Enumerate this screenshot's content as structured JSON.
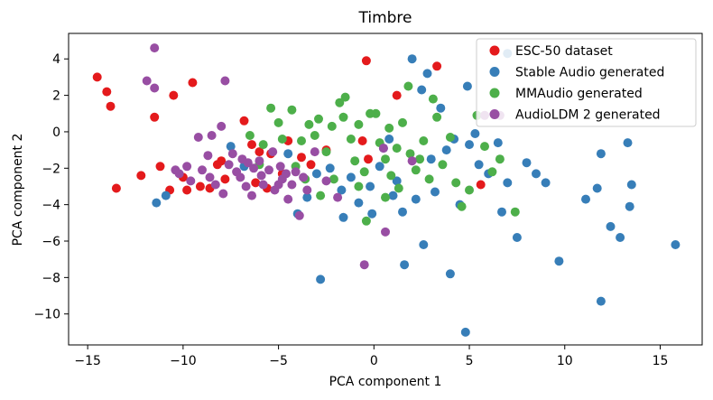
{
  "chart_data": {
    "type": "scatter",
    "title": "Timbre",
    "xlabel": "PCA component 1",
    "ylabel": "PCA component 2",
    "xlim": [
      -16.0,
      17.2
    ],
    "ylim": [
      -11.7,
      5.4
    ],
    "xticks": [
      -15,
      -10,
      -5,
      0,
      5,
      10,
      15
    ],
    "yticks": [
      -10,
      -8,
      -6,
      -4,
      -2,
      0,
      2,
      4
    ],
    "xtick_labels": [
      "−15",
      "−10",
      "−5",
      "0",
      "5",
      "10",
      "15"
    ],
    "ytick_labels": [
      "−10",
      "−8",
      "−6",
      "−4",
      "−2",
      "0",
      "2",
      "4"
    ],
    "legend_position": "top-right",
    "series": [
      {
        "name": "ESC-50 dataset",
        "color": "#e41a1c",
        "points": [
          [
            -14.5,
            3.0
          ],
          [
            -14.0,
            2.2
          ],
          [
            -13.8,
            1.4
          ],
          [
            -10.5,
            2.0
          ],
          [
            -9.5,
            2.7
          ],
          [
            -11.5,
            0.8
          ],
          [
            -12.2,
            -2.4
          ],
          [
            -11.2,
            -1.9
          ],
          [
            -13.5,
            -3.1
          ],
          [
            -10.7,
            -3.2
          ],
          [
            -10.0,
            -2.5
          ],
          [
            -9.8,
            -3.2
          ],
          [
            -9.1,
            -3.0
          ],
          [
            -8.6,
            -3.1
          ],
          [
            -8.0,
            -1.6
          ],
          [
            -7.8,
            -2.6
          ],
          [
            -8.2,
            -1.8
          ],
          [
            -6.8,
            0.6
          ],
          [
            -6.4,
            -0.7
          ],
          [
            -6.0,
            -1.1
          ],
          [
            -5.4,
            -1.2
          ],
          [
            -6.2,
            -2.8
          ],
          [
            -5.6,
            -3.1
          ],
          [
            -4.8,
            -2.3
          ],
          [
            -3.3,
            -1.8
          ],
          [
            -2.5,
            -1.0
          ],
          [
            -0.4,
            3.9
          ],
          [
            1.2,
            2.0
          ],
          [
            3.3,
            3.6
          ],
          [
            -0.6,
            -0.5
          ],
          [
            -0.3,
            -1.5
          ],
          [
            5.6,
            -2.9
          ],
          [
            -4.5,
            -0.5
          ],
          [
            -3.8,
            -1.4
          ]
        ]
      },
      {
        "name": "Stable Audio generated",
        "color": "#377eb8",
        "points": [
          [
            -11.4,
            -3.9
          ],
          [
            -10.9,
            -3.5
          ],
          [
            -7.5,
            -0.8
          ],
          [
            -6.8,
            -1.9
          ],
          [
            -4.5,
            -1.2
          ],
          [
            -4.0,
            -4.5
          ],
          [
            -3.5,
            -3.6
          ],
          [
            -2.8,
            -8.1
          ],
          [
            -2.3,
            -2.0
          ],
          [
            -1.7,
            -3.2
          ],
          [
            -1.6,
            -4.7
          ],
          [
            -0.8,
            -3.9
          ],
          [
            -0.2,
            -3.0
          ],
          [
            0.3,
            -1.9
          ],
          [
            0.8,
            -0.4
          ],
          [
            1.2,
            -2.7
          ],
          [
            1.5,
            -4.4
          ],
          [
            1.6,
            -7.3
          ],
          [
            2.0,
            4.0
          ],
          [
            2.5,
            2.3
          ],
          [
            3.0,
            -1.5
          ],
          [
            3.2,
            -3.3
          ],
          [
            3.5,
            1.3
          ],
          [
            4.0,
            -7.8
          ],
          [
            4.5,
            -4.0
          ],
          [
            5.0,
            -0.7
          ],
          [
            5.3,
            -0.1
          ],
          [
            5.5,
            -1.8
          ],
          [
            6.0,
            -2.3
          ],
          [
            6.5,
            -0.6
          ],
          [
            7.0,
            -2.8
          ],
          [
            7.5,
            -5.8
          ],
          [
            8.0,
            -1.7
          ],
          [
            8.5,
            -2.3
          ],
          [
            9.0,
            -2.8
          ],
          [
            9.7,
            -7.1
          ],
          [
            11.1,
            -3.7
          ],
          [
            11.9,
            -1.2
          ],
          [
            11.7,
            -3.1
          ],
          [
            11.9,
            -9.3
          ],
          [
            12.4,
            -5.2
          ],
          [
            12.9,
            -5.8
          ],
          [
            13.3,
            -0.6
          ],
          [
            13.5,
            -2.9
          ],
          [
            13.4,
            -4.1
          ],
          [
            15.8,
            -6.2
          ],
          [
            4.8,
            -11.0
          ],
          [
            2.2,
            -3.7
          ],
          [
            1.0,
            -3.5
          ],
          [
            0.5,
            -0.9
          ],
          [
            -1.2,
            -2.5
          ],
          [
            2.8,
            3.2
          ],
          [
            3.8,
            -1.0
          ],
          [
            4.2,
            -0.4
          ],
          [
            4.9,
            2.5
          ],
          [
            6.7,
            -4.4
          ],
          [
            7.0,
            4.3
          ],
          [
            -0.1,
            -4.5
          ],
          [
            -3.0,
            -2.3
          ],
          [
            2.6,
            -6.2
          ]
        ]
      },
      {
        "name": "MMAudio generated",
        "color": "#4daf4a",
        "points": [
          [
            -6.5,
            -0.2
          ],
          [
            -5.8,
            -0.7
          ],
          [
            -5.4,
            1.3
          ],
          [
            -5.0,
            0.5
          ],
          [
            -4.8,
            -0.4
          ],
          [
            -4.3,
            1.2
          ],
          [
            -3.8,
            -0.5
          ],
          [
            -3.4,
            0.4
          ],
          [
            -3.1,
            -0.2
          ],
          [
            -2.9,
            0.7
          ],
          [
            -2.5,
            -1.1
          ],
          [
            -2.2,
            0.3
          ],
          [
            -1.8,
            1.6
          ],
          [
            -1.6,
            0.8
          ],
          [
            -1.2,
            -0.4
          ],
          [
            -1.0,
            -1.6
          ],
          [
            -0.8,
            0.4
          ],
          [
            -0.5,
            -2.2
          ],
          [
            0.1,
            1.0
          ],
          [
            0.3,
            -0.6
          ],
          [
            0.6,
            -1.5
          ],
          [
            0.8,
            0.2
          ],
          [
            1.2,
            -0.9
          ],
          [
            1.5,
            0.5
          ],
          [
            1.9,
            -1.2
          ],
          [
            2.2,
            -2.1
          ],
          [
            2.6,
            -0.5
          ],
          [
            2.9,
            -2.6
          ],
          [
            3.3,
            0.8
          ],
          [
            3.6,
            -1.8
          ],
          [
            4.0,
            -0.3
          ],
          [
            4.3,
            -2.8
          ],
          [
            4.6,
            -4.1
          ],
          [
            5.0,
            -3.2
          ],
          [
            5.4,
            0.9
          ],
          [
            5.8,
            -0.8
          ],
          [
            6.2,
            -2.2
          ],
          [
            6.6,
            -1.5
          ],
          [
            7.4,
            -4.4
          ],
          [
            -3.6,
            -2.6
          ],
          [
            -2.8,
            -3.5
          ],
          [
            -0.8,
            -3.0
          ],
          [
            -0.4,
            -4.9
          ],
          [
            0.6,
            -3.6
          ],
          [
            1.3,
            -3.1
          ],
          [
            3.1,
            1.8
          ],
          [
            -0.2,
            1.0
          ],
          [
            1.8,
            2.5
          ],
          [
            -1.5,
            1.9
          ],
          [
            -6.0,
            -1.8
          ],
          [
            -4.1,
            -1.9
          ],
          [
            -2.1,
            -2.6
          ],
          [
            0.9,
            -2.4
          ],
          [
            2.4,
            -1.5
          ]
        ]
      },
      {
        "name": "AudioLDM 2 generated",
        "color": "#984ea3",
        "points": [
          [
            -11.5,
            4.6
          ],
          [
            -11.9,
            2.8
          ],
          [
            -11.5,
            2.4
          ],
          [
            -7.8,
            2.8
          ],
          [
            -8.5,
            -0.2
          ],
          [
            -8.0,
            0.3
          ],
          [
            -9.2,
            -0.3
          ],
          [
            -8.7,
            -1.3
          ],
          [
            -9.0,
            -2.1
          ],
          [
            -8.3,
            -2.9
          ],
          [
            -7.9,
            -3.4
          ],
          [
            -7.4,
            -1.2
          ],
          [
            -7.0,
            -2.5
          ],
          [
            -6.6,
            -1.7
          ],
          [
            -6.3,
            -2.0
          ],
          [
            -6.0,
            -1.6
          ],
          [
            -5.8,
            -2.9
          ],
          [
            -5.5,
            -2.1
          ],
          [
            -5.2,
            -3.2
          ],
          [
            -4.8,
            -2.6
          ],
          [
            -4.5,
            -3.7
          ],
          [
            -4.1,
            -2.2
          ],
          [
            -3.9,
            -4.6
          ],
          [
            -3.5,
            -3.2
          ],
          [
            -3.1,
            -1.1
          ],
          [
            -2.5,
            -2.7
          ],
          [
            -1.9,
            -3.6
          ],
          [
            0.5,
            -0.9
          ],
          [
            0.6,
            -5.5
          ],
          [
            2.0,
            -1.6
          ],
          [
            -0.5,
            -7.3
          ],
          [
            5.8,
            0.9
          ],
          [
            6.6,
            0.9
          ],
          [
            -10.2,
            -2.3
          ],
          [
            -9.6,
            -2.7
          ],
          [
            -8.6,
            -2.5
          ],
          [
            -7.2,
            -2.2
          ],
          [
            -6.9,
            -1.5
          ],
          [
            -6.4,
            -3.5
          ],
          [
            -5.9,
            -2.4
          ],
          [
            -5.3,
            -1.1
          ],
          [
            -4.9,
            -1.9
          ],
          [
            -4.3,
            -2.9
          ],
          [
            -3.7,
            -2.5
          ],
          [
            -10.4,
            -2.1
          ],
          [
            -9.8,
            -1.9
          ],
          [
            -7.6,
            -1.8
          ],
          [
            -5.0,
            -2.9
          ],
          [
            -4.6,
            -2.3
          ],
          [
            -6.7,
            -3.0
          ]
        ]
      }
    ]
  }
}
